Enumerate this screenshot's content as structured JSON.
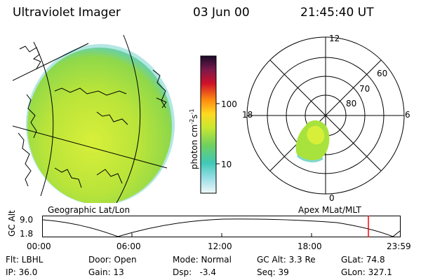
{
  "header": {
    "title": "Ultraviolet Imager",
    "date": "03 Jun 00",
    "time": "21:45:40 UT"
  },
  "colorbar": {
    "unit_label": "photon cm",
    "unit_sup1": "-2",
    "unit_s": "s",
    "unit_sup2": "-1",
    "ticks": [
      "100",
      "10"
    ]
  },
  "polar_plot": {
    "mlt_labels": {
      "top": "12",
      "left": "18",
      "right": "6",
      "bottom": "0"
    },
    "lat_labels": [
      "60",
      "70",
      "80"
    ]
  },
  "labels": {
    "geo": "Geographic Lat/Lon",
    "apex": "Apex MLat/MLT"
  },
  "timeline": {
    "axis_title": "GC Alt",
    "y_max": "9.0",
    "y_min": "1.8",
    "x_ticks": [
      "00:00",
      "06:00",
      "12:00",
      "18:00",
      "23:59"
    ],
    "current_time_fraction": 0.91
  },
  "footer": {
    "row1": [
      {
        "key": "Flt: LBHL"
      },
      {
        "key": "Door: Open"
      },
      {
        "key": "Mode: Normal"
      },
      {
        "key": "GC Alt: 3.3 Re"
      },
      {
        "key": "GLat:  74.8"
      }
    ],
    "row2": [
      {
        "key": "IP: 36.0"
      },
      {
        "key": "Gain: 13"
      },
      {
        "key": "Dsp:   -3.4"
      },
      {
        "key": "Seq: 39"
      },
      {
        "key": "GLon: 327.1"
      }
    ]
  },
  "colors": {
    "foreground": "#000000",
    "cursor": "#ff0000",
    "earth_emission": "#a8e23c"
  }
}
